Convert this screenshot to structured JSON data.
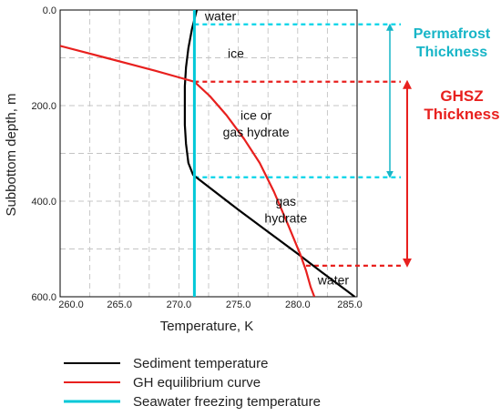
{
  "chart_data": {
    "type": "line",
    "xlabel": "Temperature, K",
    "ylabel": "Subbottom depth, m",
    "xlim": [
      260.0,
      285.0
    ],
    "ylim": [
      0.0,
      600.0
    ],
    "y_inverted": true,
    "grid": true,
    "legend_position": "bottom",
    "x_ticks": [
      "260.0",
      "265.0",
      "270.0",
      "275.0",
      "280.0",
      "285.0"
    ],
    "y_ticks": [
      "0.0",
      "200.0",
      "400.0",
      "600.0"
    ],
    "series": [
      {
        "name": "Sediment temperature",
        "color": "#000000",
        "points": [
          [
            271.5,
            0
          ],
          [
            271.1,
            40
          ],
          [
            270.8,
            80
          ],
          [
            270.6,
            120
          ],
          [
            270.5,
            160
          ],
          [
            270.5,
            200
          ],
          [
            270.5,
            240
          ],
          [
            270.6,
            280
          ],
          [
            270.8,
            320
          ],
          [
            271.2,
            345
          ],
          [
            272.5,
            370
          ],
          [
            275.0,
            418
          ],
          [
            277.5,
            464
          ],
          [
            280.0,
            510
          ],
          [
            282.0,
            548
          ],
          [
            284.0,
            585
          ],
          [
            284.8,
            600
          ]
        ]
      },
      {
        "name": "GH equilibrium curve",
        "color": "#e8201e",
        "points": [
          [
            260.0,
            75
          ],
          [
            262.0,
            88
          ],
          [
            264.0,
            101
          ],
          [
            266.0,
            114
          ],
          [
            268.0,
            127
          ],
          [
            270.0,
            141
          ],
          [
            271.3,
            150
          ],
          [
            272.6,
            180
          ],
          [
            274.0,
            220
          ],
          [
            275.5,
            270
          ],
          [
            276.8,
            320
          ],
          [
            278.0,
            380
          ],
          [
            279.2,
            450
          ],
          [
            280.2,
            510
          ],
          [
            280.7,
            545
          ],
          [
            281.1,
            580
          ],
          [
            281.4,
            600
          ]
        ]
      },
      {
        "name": "Seawater freezing temperature",
        "color": "#00c8d8",
        "points": [
          [
            271.3,
            0
          ],
          [
            271.3,
            600
          ]
        ]
      }
    ],
    "reference_lines": [
      {
        "depth": 30,
        "color": "#00d4e8",
        "from_x": 271.3
      },
      {
        "depth": 350,
        "color": "#00d4e8",
        "from_x": 271.3
      },
      {
        "depth": 150,
        "color": "#e8201e",
        "from_x": 271.3
      },
      {
        "depth": 535,
        "color": "#e8201e",
        "from_x": 280.7
      }
    ],
    "zone_labels": [
      {
        "text": "water",
        "x": 273.5,
        "y": 12
      },
      {
        "text": "ice",
        "x": 274.8,
        "y": 90
      },
      {
        "text": "ice or",
        "x": 276.5,
        "y": 220
      },
      {
        "text": "gas hydrate",
        "x": 276.5,
        "y": 255
      },
      {
        "text": "gas",
        "x": 279.0,
        "y": 400
      },
      {
        "text": "hydrate",
        "x": 279.0,
        "y": 435
      },
      {
        "text": "water",
        "x": 283.0,
        "y": 565
      }
    ],
    "thickness_annotations": [
      {
        "lines": [
          "Permafrost",
          "Thickness"
        ],
        "color": "#17b5c7",
        "from_depth": 30,
        "to_depth": 350
      },
      {
        "lines": [
          "GHSZ",
          "Thickness"
        ],
        "color": "#e8201e",
        "from_depth": 150,
        "to_depth": 535
      }
    ]
  }
}
